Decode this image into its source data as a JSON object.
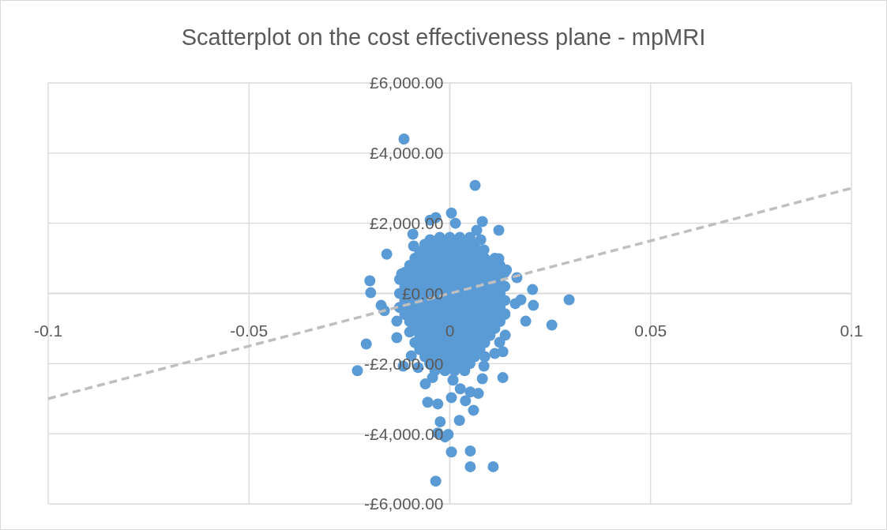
{
  "chart_data": {
    "type": "scatter",
    "title": "Scatterplot on the cost effectiveness plane - mpMRI",
    "xlim": [
      -0.1,
      0.1
    ],
    "xticks": [
      -0.1,
      -0.05,
      0,
      0.05,
      0.1
    ],
    "ylim": [
      -6000,
      6000
    ],
    "yticks": [
      {
        "value": -6000,
        "label": "-£6,000.00"
      },
      {
        "value": -4000,
        "label": "-£4,000.00"
      },
      {
        "value": -2000,
        "label": "-£2,000.00"
      },
      {
        "value": 0,
        "label": "£0.00"
      },
      {
        "value": 2000,
        "label": "£2,000.00"
      },
      {
        "value": 4000,
        "label": "£4,000.00"
      },
      {
        "value": 6000,
        "label": "£6,000.00"
      }
    ],
    "grid": true,
    "series": [
      {
        "color": "#5b9bd5",
        "marker": "circle",
        "x": [
          -0.0114,
          0.0063,
          -0.0208,
          -0.023,
          -0.0157,
          -0.0199,
          -0.0197,
          -0.0171,
          -0.0163,
          0.0297,
          0.0254,
          0.0206,
          0.0208,
          0.0189,
          0.0167,
          0.0177,
          0.0163,
          0.0132,
          0.0108,
          0.0051,
          0.0051,
          0.0004,
          -0.0035,
          0.0024,
          -0.0024,
          -0.003,
          -0.0012,
          -0.0004,
          0.0059,
          0.0039,
          0.0071,
          -0.003,
          -0.0055,
          -0.0061,
          -0.0116,
          -0.0132,
          -0.0092,
          -0.0049,
          -0.0049,
          -0.0035,
          0.0004,
          0.0014,
          0.0067,
          0.0081,
          0.0122,
          0.0085,
          0.0077,
          -0.009,
          -0.012,
          0.0122,
          0.0141,
          0.0137,
          0.0138,
          0.0132,
          0.0112,
          0.0085,
          0.0081,
          0.0124,
          -0.0096,
          -0.0132,
          -0.01,
          -0.0079,
          -0.0043,
          0.0008,
          0.0004,
          0.0026,
          0.0051,
          -0.0025,
          0,
          0.0025,
          0.005,
          -0.0062,
          -0.0037,
          -0.0012,
          0.0012,
          0.0037,
          0.0062,
          -0.0075,
          -0.005,
          -0.0025,
          0,
          0.0025,
          0.005,
          0.0075,
          -0.0087,
          -0.0062,
          -0.0037,
          -0.0012,
          0.0012,
          0.0037,
          0.0062,
          0.0087,
          0.0112,
          -0.01,
          -0.0075,
          -0.005,
          -0.0025,
          0,
          0.0025,
          0.005,
          0.0075,
          0.01,
          0.0125,
          -0.0112,
          -0.0087,
          -0.0062,
          -0.0037,
          -0.0012,
          0.0012,
          0.0037,
          0.0062,
          0.0087,
          0.0112,
          0.0137,
          -0.0125,
          -0.01,
          -0.0075,
          -0.005,
          -0.0025,
          0,
          0.0025,
          0.005,
          0.0075,
          0.01,
          0.0125,
          -0.0112,
          -0.0087,
          -0.0062,
          -0.0037,
          -0.0012,
          0.0012,
          0.0037,
          0.0062,
          0.0087,
          0.0112,
          0.0137,
          -0.0125,
          -0.01,
          -0.0075,
          -0.005,
          -0.0025,
          0,
          0.0025,
          0.005,
          0.0075,
          0.01,
          0.0125,
          -0.0112,
          -0.0087,
          -0.0062,
          -0.0037,
          -0.0012,
          0.0012,
          0.0037,
          0.0062,
          0.0087,
          0.0112,
          0.0137,
          -0.0125,
          -0.01,
          -0.0075,
          -0.005,
          -0.0025,
          0,
          0.0025,
          0.005,
          0.0075,
          0.01,
          0.0125,
          -0.0112,
          -0.0087,
          -0.0062,
          -0.0037,
          -0.0012,
          0.0012,
          0.0037,
          0.0062,
          0.0087,
          0.0112,
          0.0137,
          -0.01,
          -0.0075,
          -0.005,
          -0.0025,
          0,
          0.0025,
          0.005,
          0.0075,
          0.01,
          0.0125,
          -0.0087,
          -0.0062,
          -0.0037,
          -0.0012,
          0.0012,
          0.0037,
          0.0062,
          0.0087,
          0.0112,
          -0.0075,
          -0.005,
          -0.0025,
          0,
          0.0025,
          0.005,
          0.0075,
          0.01,
          -0.0087,
          -0.0062,
          -0.0037,
          -0.0012,
          0.0012,
          0.0037,
          0.0062,
          0.0087,
          -0.0075,
          -0.005,
          -0.0025,
          0,
          0.0025,
          0.005,
          0.0075,
          -0.0062,
          -0.0037,
          -0.0012,
          0.0012,
          0.0037,
          0.0062,
          0.0087,
          -0.005,
          -0.0025,
          0,
          0.0025,
          0.005,
          -0.0037,
          -0.0012,
          0.0012,
          0.0037
        ],
        "values": [
          4400,
          3080,
          -1440,
          -2200,
          1120,
          360,
          20,
          -340,
          -490,
          -180,
          -900,
          110,
          -340,
          -790,
          450,
          -180,
          -290,
          -2400,
          -4940,
          -4940,
          -4490,
          -4520,
          -5350,
          -3620,
          -3660,
          -3980,
          -4090,
          -4020,
          -3330,
          -3060,
          -2850,
          -3150,
          -3100,
          -2580,
          -2070,
          -1260,
          1690,
          1530,
          2090,
          2160,
          2290,
          2000,
          1800,
          2050,
          1800,
          1240,
          1530,
          1350,
          560,
          990,
          670,
          -580,
          -1190,
          -1660,
          -1710,
          -2070,
          -2430,
          -1390,
          -1780,
          -790,
          -1100,
          -2110,
          -2400,
          -2470,
          -2970,
          -2720,
          -2810,
          1600,
          1600,
          1600,
          1600,
          1400,
          1400,
          1400,
          1400,
          1400,
          1400,
          1200,
          1200,
          1200,
          1200,
          1200,
          1200,
          1200,
          1000,
          1000,
          1000,
          1000,
          1000,
          1000,
          1000,
          1000,
          1000,
          800,
          800,
          800,
          800,
          800,
          800,
          800,
          800,
          800,
          800,
          600,
          600,
          600,
          600,
          600,
          600,
          600,
          600,
          600,
          600,
          600,
          400,
          400,
          400,
          400,
          400,
          400,
          400,
          400,
          400,
          400,
          400,
          200,
          200,
          200,
          200,
          200,
          200,
          200,
          200,
          200,
          200,
          200,
          0,
          0,
          0,
          0,
          0,
          0,
          0,
          0,
          0,
          0,
          0,
          -200,
          -200,
          -200,
          -200,
          -200,
          -200,
          -200,
          -200,
          -200,
          -200,
          -200,
          -400,
          -400,
          -400,
          -400,
          -400,
          -400,
          -400,
          -400,
          -400,
          -400,
          -400,
          -600,
          -600,
          -600,
          -600,
          -600,
          -600,
          -600,
          -600,
          -600,
          -600,
          -600,
          -800,
          -800,
          -800,
          -800,
          -800,
          -800,
          -800,
          -800,
          -800,
          -800,
          -1000,
          -1000,
          -1000,
          -1000,
          -1000,
          -1000,
          -1000,
          -1000,
          -1000,
          -1200,
          -1200,
          -1200,
          -1200,
          -1200,
          -1200,
          -1200,
          -1200,
          -1400,
          -1400,
          -1400,
          -1400,
          -1400,
          -1400,
          -1400,
          -1400,
          -1600,
          -1600,
          -1600,
          -1600,
          -1600,
          -1600,
          -1600,
          -1800,
          -1800,
          -1800,
          -1800,
          -1800,
          -1800,
          -1800,
          -2000,
          -2000,
          -2000,
          -2000,
          -2000,
          -2200,
          -2200,
          -2200,
          -2200
        ]
      },
      {
        "type": "line",
        "color": "#bfbfbf",
        "line_style": "dashed",
        "marker": "none",
        "x": [
          -0.1,
          0.1
        ],
        "values": [
          -3000,
          3000
        ]
      }
    ]
  }
}
